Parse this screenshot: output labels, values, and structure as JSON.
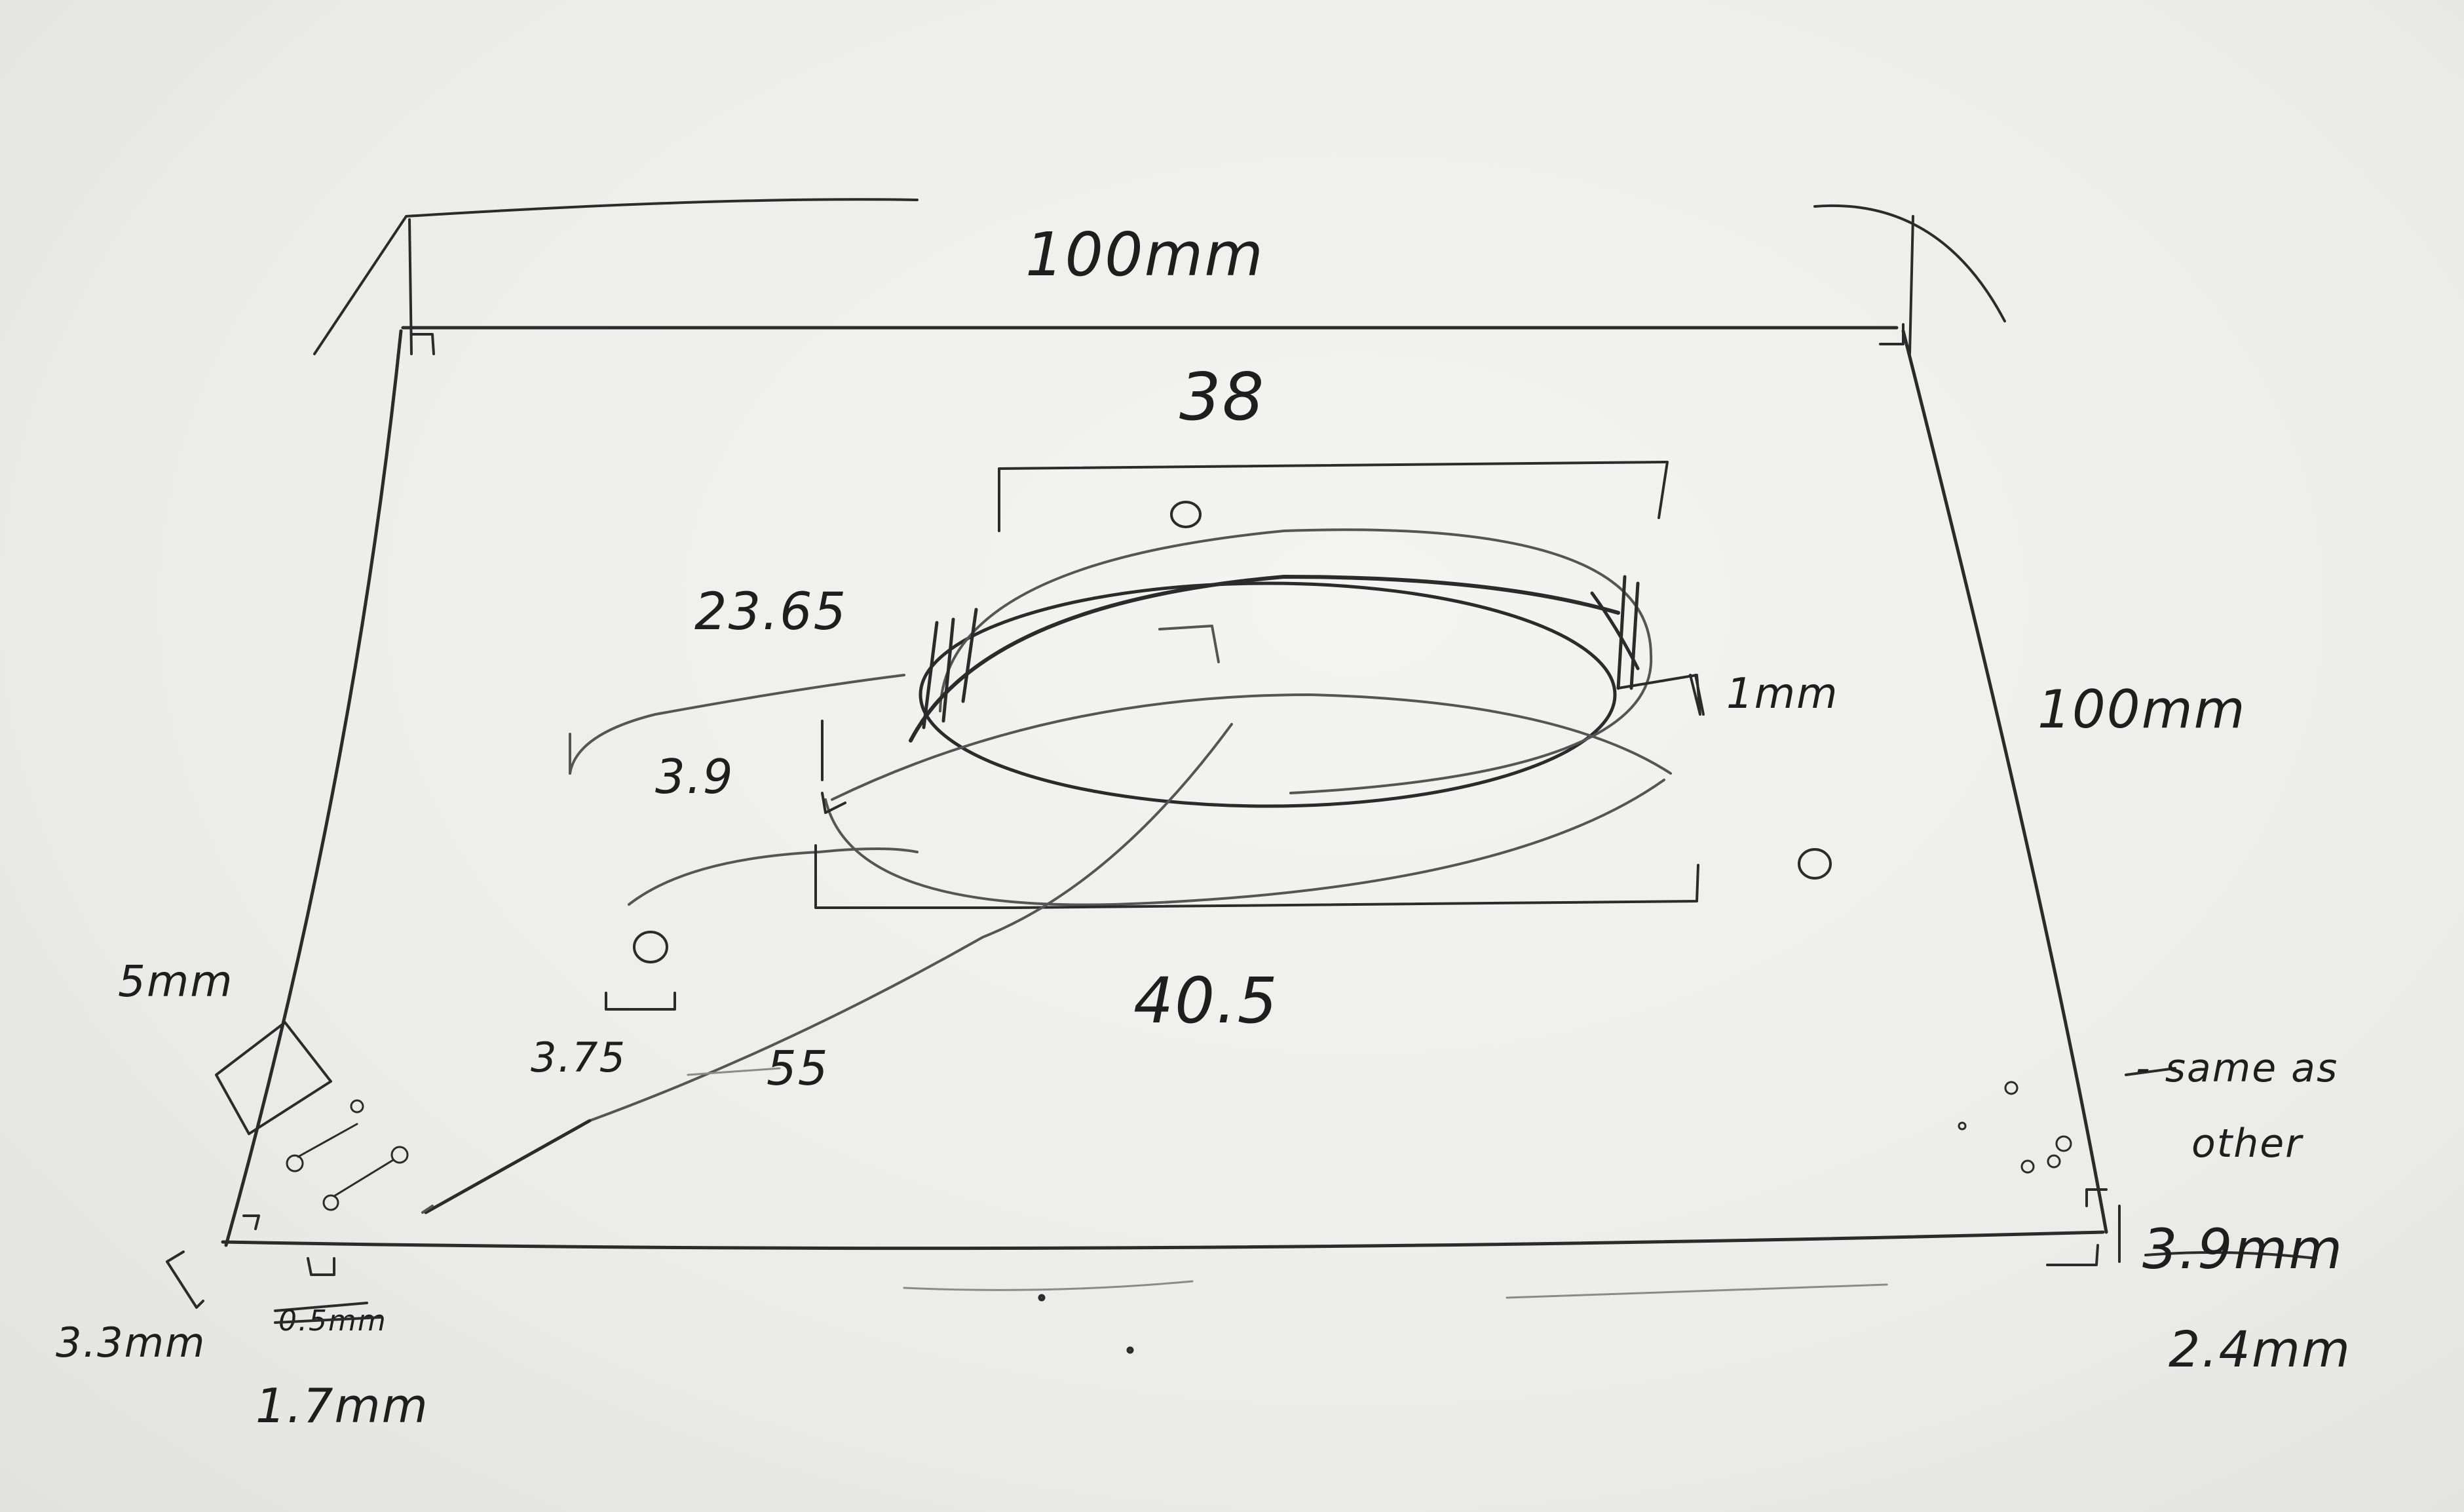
{
  "sketch": {
    "labels": {
      "top_width": "100mm",
      "right_height": "100mm",
      "outer_width": "38",
      "outer_diameter": "23.65",
      "wall_height": "1mm",
      "inner_offset": "3.9",
      "inner_width": "40.5",
      "hole_spacing": "3.75",
      "diagonal": "55",
      "corner_size": "5mm",
      "corner_offset": "3.3mm",
      "crossed_value_left": "0.5mm",
      "small_gap": "1.7mm",
      "same_as_other": "- same as",
      "same_as_other_2": "other",
      "crossed_value_right": "3.9mm",
      "right_corner": "2.4mm"
    }
  }
}
